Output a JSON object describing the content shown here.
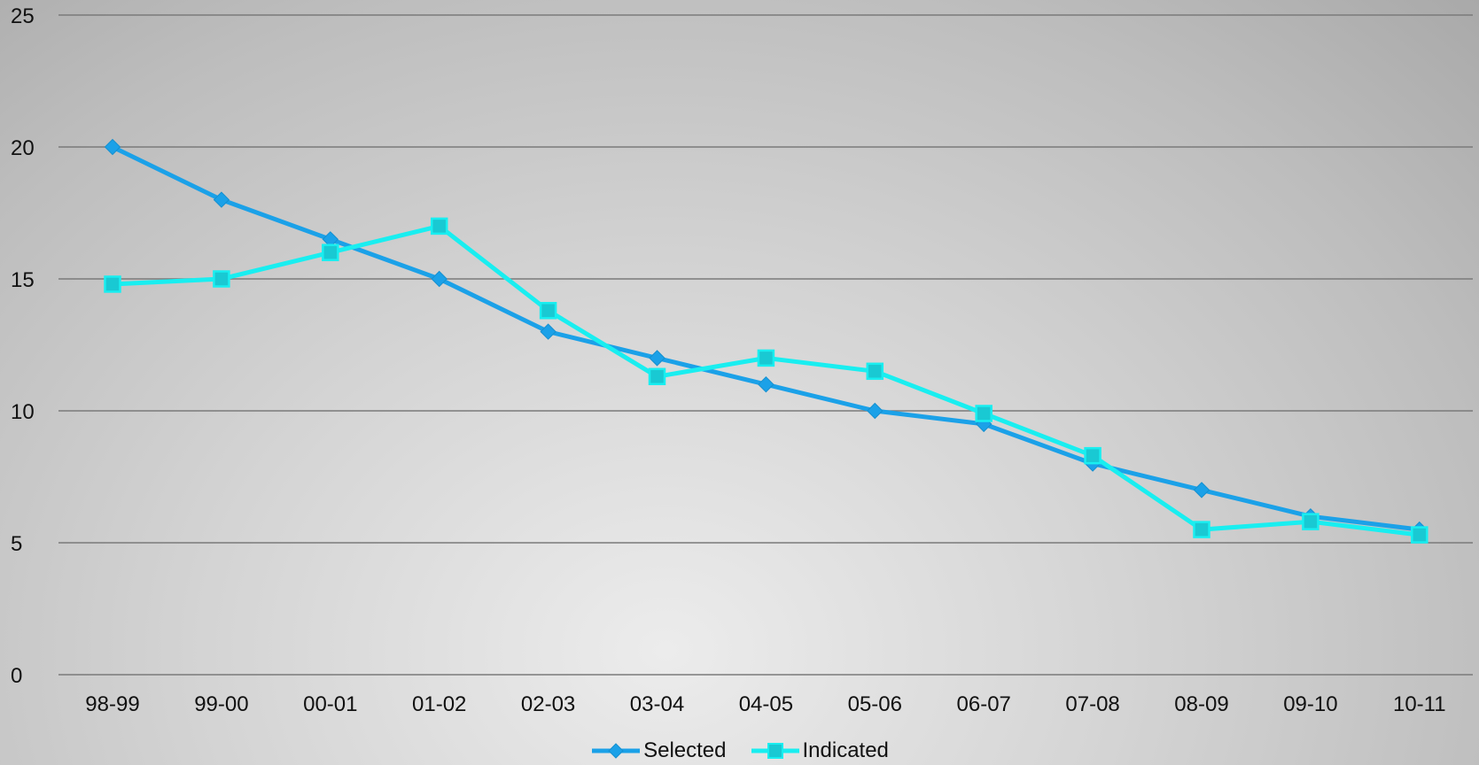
{
  "chart_data": {
    "type": "line",
    "title": "",
    "xlabel": "",
    "ylabel": "",
    "categories": [
      "98-99",
      "99-00",
      "00-01",
      "01-02",
      "02-03",
      "03-04",
      "04-05",
      "05-06",
      "06-07",
      "07-08",
      "08-09",
      "09-10",
      "10-11"
    ],
    "yticks": [
      "0",
      "5",
      "10",
      "15",
      "20",
      "25"
    ],
    "ylim": [
      0,
      25
    ],
    "grid": true,
    "legend_position": "bottom",
    "series": [
      {
        "name": "Selected",
        "color": "#1ba1e8",
        "marker": "diamond",
        "values": [
          20,
          18,
          16.5,
          15,
          13,
          12,
          11,
          10,
          9.5,
          8,
          7,
          6,
          5.5
        ]
      },
      {
        "name": "Indicated",
        "color": "#19eef0",
        "marker": "square",
        "values": [
          14.8,
          15,
          16,
          17,
          13.8,
          11.3,
          12,
          11.5,
          9.9,
          8.3,
          5.5,
          5.8,
          5.3
        ]
      }
    ]
  }
}
